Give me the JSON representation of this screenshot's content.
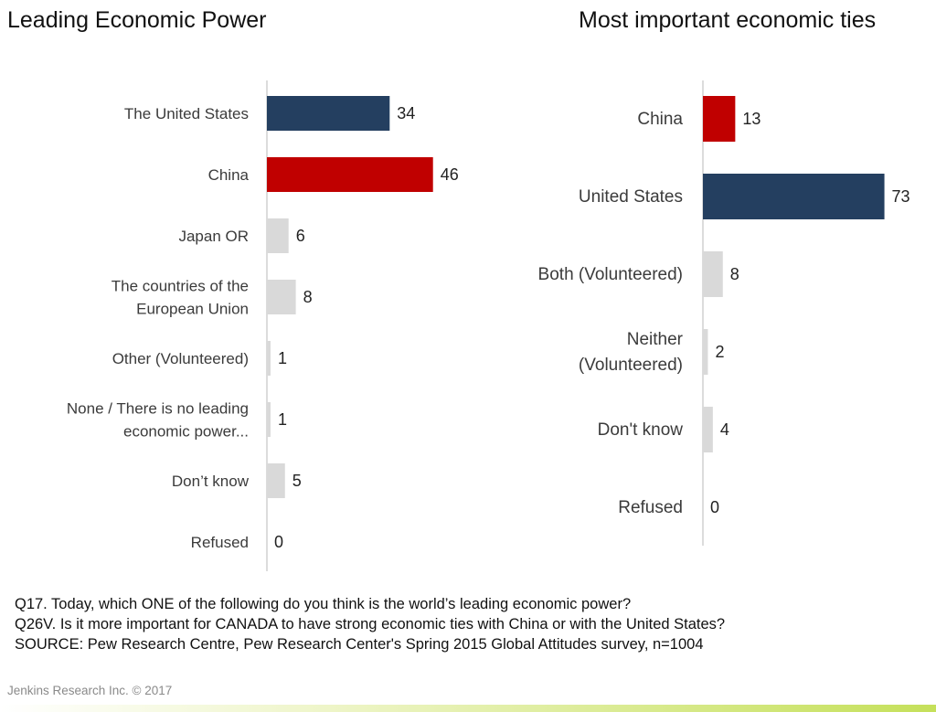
{
  "chart_data": [
    {
      "type": "bar",
      "orientation": "horizontal",
      "title": "Leading Economic Power",
      "categories": [
        [
          "The United States"
        ],
        [
          "China"
        ],
        [
          "Japan OR"
        ],
        [
          "The countries of the",
          "European Union"
        ],
        [
          "Other (Volunteered)"
        ],
        [
          "None / There is no leading",
          "economic power..."
        ],
        [
          "Don’t know"
        ],
        [
          "Refused"
        ]
      ],
      "values": [
        34,
        46,
        6,
        8,
        1,
        1,
        5,
        0
      ],
      "colors": [
        "#243f60",
        "#c00000",
        "#d9d9d9",
        "#d9d9d9",
        "#d9d9d9",
        "#d9d9d9",
        "#d9d9d9",
        "#d9d9d9"
      ],
      "xlim": [
        0,
        100
      ]
    },
    {
      "type": "bar",
      "orientation": "horizontal",
      "title": "Most important economic ties",
      "categories": [
        [
          "China"
        ],
        [
          "United States"
        ],
        [
          "Both (Volunteered)"
        ],
        [
          "Neither",
          "(Volunteered)"
        ],
        [
          "Don't know"
        ],
        [
          "Refused"
        ]
      ],
      "values": [
        13,
        73,
        8,
        2,
        4,
        0
      ],
      "colors": [
        "#c00000",
        "#243f60",
        "#d9d9d9",
        "#d9d9d9",
        "#d9d9d9",
        "#d9d9d9"
      ],
      "xlim": [
        0,
        100
      ]
    }
  ],
  "notes": {
    "q17": "Q17.  Today, which ONE of the following do you think is the world’s leading economic power?",
    "q26": "Q26V. Is it more important for CANADA to have strong economic ties with China or with the United States?",
    "source": "SOURCE: Pew Research Centre, Pew Research Center's Spring 2015 Global Attitudes survey, n=1004"
  },
  "footer": "Jenkins Research Inc. © 2017"
}
